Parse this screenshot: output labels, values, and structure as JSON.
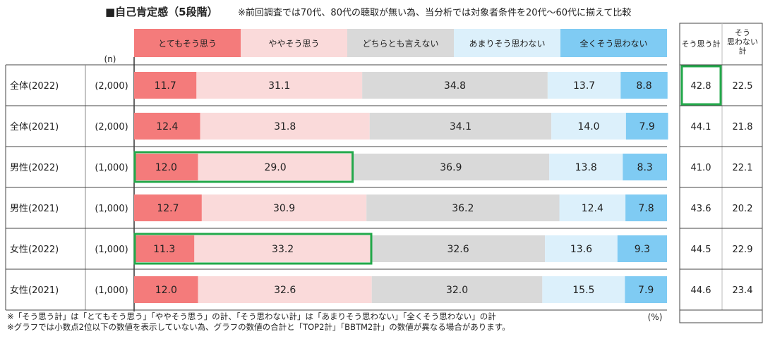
{
  "title": "■自己肯定感（5段階）",
  "note_top": "※前回調査では70代、80代の聴取が無い為、当分析では対象者条件を20代～60代に揃えて比較",
  "n_label": "(n)",
  "percent_label": "(%)",
  "footnotes": [
    "※「そう思う計」は「とてもそう思う」「ややそう思う」の計、「そう思わない計」は「あまりそう思わない」「全くそう思わない」の計",
    "※グラフでは小数点2位以下の数値を表示していない為、グラフの数値の合計と「TOP2計」「BBTM2計」の数値が異なる場合があります。"
  ],
  "summary_headers": [
    "そう思う計",
    "そう\n思わない\n計"
  ],
  "chart_data": {
    "type": "bar",
    "stacked": true,
    "orientation": "horizontal",
    "xlim": [
      0,
      100
    ],
    "unit": "%",
    "legend_position": "top",
    "categories": [
      "全体(2022)",
      "全体(2021)",
      "男性(2022)",
      "男性(2021)",
      "女性(2022)",
      "女性(2021)"
    ],
    "n": [
      "(2,000)",
      "(2,000)",
      "(1,000)",
      "(1,000)",
      "(1,000)",
      "(1,000)"
    ],
    "series": [
      {
        "name": "とてもそう思う",
        "color": "#f47b7b",
        "values": [
          11.7,
          12.4,
          12.0,
          12.7,
          11.3,
          12.0
        ]
      },
      {
        "name": "ややそう思う",
        "color": "#fadada",
        "values": [
          31.1,
          31.8,
          29.0,
          30.9,
          33.2,
          32.6
        ]
      },
      {
        "name": "どちらとも言えない",
        "color": "#d9d9d9",
        "values": [
          34.8,
          34.1,
          36.9,
          36.2,
          32.6,
          32.0
        ]
      },
      {
        "name": "あまりそう思わない",
        "color": "#dcf0fb",
        "values": [
          13.7,
          14.0,
          13.8,
          12.4,
          13.6,
          15.5
        ]
      },
      {
        "name": "全くそう思わない",
        "color": "#7fcbf3",
        "values": [
          8.8,
          7.9,
          8.3,
          7.8,
          9.3,
          7.9
        ]
      }
    ],
    "summary": {
      "top2": [
        42.8,
        44.1,
        41.0,
        43.6,
        44.5,
        44.6
      ],
      "bottom2": [
        22.5,
        21.8,
        22.1,
        20.2,
        22.9,
        23.4
      ]
    },
    "highlight_color": "#22a84a"
  }
}
